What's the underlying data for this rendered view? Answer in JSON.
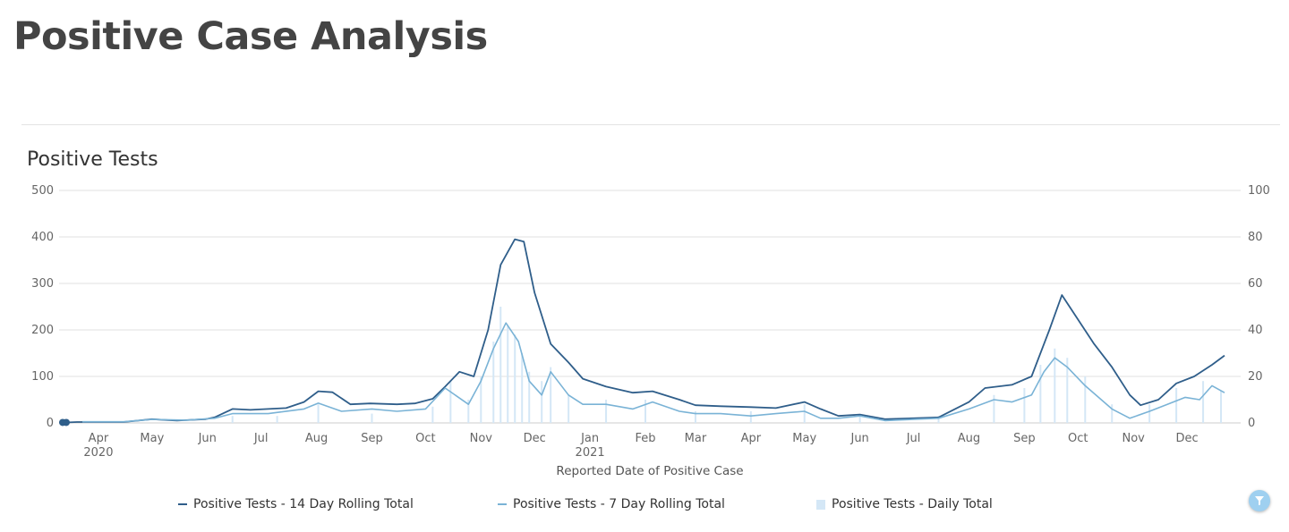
{
  "page": {
    "title": "Positive Case Analysis"
  },
  "chart_title": "Positive Tests",
  "colors": {
    "line14": "#2f5e8a",
    "line7": "#7ab3d6",
    "bars": "#d4e7f6",
    "grid": "#e0e0e0"
  },
  "icons": {
    "filter": "filter-icon"
  },
  "chart_data": {
    "type": "line",
    "title": "Positive Tests",
    "xlabel": "Reported Date of Positive Case",
    "ylabel_left": "",
    "ylabel_right": "",
    "x_range": [
      "2020-03-10",
      "2021-12-31"
    ],
    "ylim_left": [
      0,
      500
    ],
    "ylim_right": [
      0,
      100
    ],
    "yticks_left": [
      "0",
      "100",
      "200",
      "300",
      "400",
      "500"
    ],
    "yticks_right": [
      "0",
      "20",
      "40",
      "60",
      "80",
      "100"
    ],
    "x_ticks": [
      {
        "date": "2020-04-01",
        "label": "Apr",
        "sublabel": "2020"
      },
      {
        "date": "2020-05-01",
        "label": "May",
        "sublabel": ""
      },
      {
        "date": "2020-06-01",
        "label": "Jun",
        "sublabel": ""
      },
      {
        "date": "2020-07-01",
        "label": "Jul",
        "sublabel": ""
      },
      {
        "date": "2020-08-01",
        "label": "Aug",
        "sublabel": ""
      },
      {
        "date": "2020-09-01",
        "label": "Sep",
        "sublabel": ""
      },
      {
        "date": "2020-10-01",
        "label": "Oct",
        "sublabel": ""
      },
      {
        "date": "2020-11-01",
        "label": "Nov",
        "sublabel": ""
      },
      {
        "date": "2020-12-01",
        "label": "Dec",
        "sublabel": ""
      },
      {
        "date": "2021-01-01",
        "label": "Jan",
        "sublabel": "2021"
      },
      {
        "date": "2021-02-01",
        "label": "Feb",
        "sublabel": ""
      },
      {
        "date": "2021-03-01",
        "label": "Mar",
        "sublabel": ""
      },
      {
        "date": "2021-04-01",
        "label": "Apr",
        "sublabel": ""
      },
      {
        "date": "2021-05-01",
        "label": "May",
        "sublabel": ""
      },
      {
        "date": "2021-06-01",
        "label": "Jun",
        "sublabel": ""
      },
      {
        "date": "2021-07-01",
        "label": "Jul",
        "sublabel": ""
      },
      {
        "date": "2021-08-01",
        "label": "Aug",
        "sublabel": ""
      },
      {
        "date": "2021-09-01",
        "label": "Sep",
        "sublabel": ""
      },
      {
        "date": "2021-10-01",
        "label": "Oct",
        "sublabel": ""
      },
      {
        "date": "2021-11-01",
        "label": "Nov",
        "sublabel": ""
      },
      {
        "date": "2021-12-01",
        "label": "Dec",
        "sublabel": ""
      }
    ],
    "grid": true,
    "legend_position": "bottom",
    "series": [
      {
        "name": "Positive Tests - 14 Day Rolling Total",
        "axis": "left",
        "kind": "line",
        "points": [
          [
            "2020-03-12",
            1
          ],
          [
            "2020-03-14",
            1
          ],
          [
            "2020-03-20",
            2
          ],
          [
            "2020-03-23",
            2
          ],
          [
            "2020-04-15",
            2
          ],
          [
            "2020-05-01",
            8
          ],
          [
            "2020-05-10",
            6
          ],
          [
            "2020-05-15",
            5
          ],
          [
            "2020-05-20",
            6
          ],
          [
            "2020-05-31",
            8
          ],
          [
            "2020-06-05",
            12
          ],
          [
            "2020-06-15",
            30
          ],
          [
            "2020-06-25",
            28
          ],
          [
            "2020-07-05",
            30
          ],
          [
            "2020-07-15",
            32
          ],
          [
            "2020-07-25",
            45
          ],
          [
            "2020-08-02",
            68
          ],
          [
            "2020-08-10",
            66
          ],
          [
            "2020-08-20",
            40
          ],
          [
            "2020-08-31",
            42
          ],
          [
            "2020-09-15",
            40
          ],
          [
            "2020-09-25",
            42
          ],
          [
            "2020-10-05",
            52
          ],
          [
            "2020-10-12",
            78
          ],
          [
            "2020-10-20",
            110
          ],
          [
            "2020-10-28",
            100
          ],
          [
            "2020-11-05",
            200
          ],
          [
            "2020-11-12",
            340
          ],
          [
            "2020-11-20",
            395
          ],
          [
            "2020-11-25",
            390
          ],
          [
            "2020-12-01",
            280
          ],
          [
            "2020-12-10",
            170
          ],
          [
            "2020-12-20",
            130
          ],
          [
            "2020-12-28",
            95
          ],
          [
            "2021-01-10",
            78
          ],
          [
            "2021-01-25",
            65
          ],
          [
            "2021-02-05",
            68
          ],
          [
            "2021-02-20",
            50
          ],
          [
            "2021-03-01",
            38
          ],
          [
            "2021-03-15",
            36
          ],
          [
            "2021-04-01",
            34
          ],
          [
            "2021-04-15",
            32
          ],
          [
            "2021-05-01",
            45
          ],
          [
            "2021-05-10",
            30
          ],
          [
            "2021-05-20",
            15
          ],
          [
            "2021-06-01",
            18
          ],
          [
            "2021-06-15",
            8
          ],
          [
            "2021-07-01",
            10
          ],
          [
            "2021-07-15",
            12
          ],
          [
            "2021-08-01",
            45
          ],
          [
            "2021-08-10",
            75
          ],
          [
            "2021-08-25",
            82
          ],
          [
            "2021-09-05",
            100
          ],
          [
            "2021-09-15",
            200
          ],
          [
            "2021-09-22",
            275
          ],
          [
            "2021-09-28",
            240
          ],
          [
            "2021-10-10",
            170
          ],
          [
            "2021-10-20",
            120
          ],
          [
            "2021-10-30",
            60
          ],
          [
            "2021-11-05",
            38
          ],
          [
            "2021-11-15",
            50
          ],
          [
            "2021-11-25",
            85
          ],
          [
            "2021-12-05",
            100
          ],
          [
            "2021-12-15",
            125
          ],
          [
            "2021-12-22",
            145
          ]
        ]
      },
      {
        "name": "Positive Tests - 7 Day Rolling Total",
        "axis": "right",
        "kind": "line",
        "points": [
          [
            "2020-03-23",
            0.5
          ],
          [
            "2020-04-15",
            0.5
          ],
          [
            "2020-05-01",
            1.5
          ],
          [
            "2020-05-20",
            1.2
          ],
          [
            "2020-06-05",
            2
          ],
          [
            "2020-06-15",
            4
          ],
          [
            "2020-07-05",
            4
          ],
          [
            "2020-07-25",
            6
          ],
          [
            "2020-08-02",
            8.5
          ],
          [
            "2020-08-15",
            5
          ],
          [
            "2020-09-01",
            6
          ],
          [
            "2020-09-15",
            5
          ],
          [
            "2020-10-01",
            6
          ],
          [
            "2020-10-12",
            15
          ],
          [
            "2020-10-25",
            8
          ],
          [
            "2020-11-01",
            18
          ],
          [
            "2020-11-08",
            32
          ],
          [
            "2020-11-15",
            43
          ],
          [
            "2020-11-22",
            35
          ],
          [
            "2020-11-28",
            18
          ],
          [
            "2020-12-05",
            12
          ],
          [
            "2020-12-10",
            22
          ],
          [
            "2020-12-20",
            12
          ],
          [
            "2020-12-28",
            8
          ],
          [
            "2021-01-10",
            8
          ],
          [
            "2021-01-25",
            6
          ],
          [
            "2021-02-05",
            9
          ],
          [
            "2021-02-20",
            5
          ],
          [
            "2021-03-01",
            4
          ],
          [
            "2021-03-15",
            4
          ],
          [
            "2021-04-01",
            3
          ],
          [
            "2021-04-15",
            4
          ],
          [
            "2021-05-01",
            5
          ],
          [
            "2021-05-10",
            2
          ],
          [
            "2021-05-20",
            2
          ],
          [
            "2021-06-01",
            3
          ],
          [
            "2021-06-15",
            1
          ],
          [
            "2021-07-15",
            2
          ],
          [
            "2021-08-01",
            6
          ],
          [
            "2021-08-15",
            10
          ],
          [
            "2021-08-25",
            9
          ],
          [
            "2021-09-05",
            12
          ],
          [
            "2021-09-12",
            22
          ],
          [
            "2021-09-18",
            28
          ],
          [
            "2021-09-25",
            24
          ],
          [
            "2021-10-05",
            16
          ],
          [
            "2021-10-20",
            6
          ],
          [
            "2021-10-30",
            2
          ],
          [
            "2021-11-10",
            5
          ],
          [
            "2021-11-20",
            8
          ],
          [
            "2021-11-30",
            11
          ],
          [
            "2021-12-08",
            10
          ],
          [
            "2021-12-15",
            16
          ],
          [
            "2021-12-22",
            13
          ]
        ]
      },
      {
        "name": "Positive Tests - Daily Total",
        "axis": "right",
        "kind": "bar",
        "points": [
          [
            "2020-06-15",
            3
          ],
          [
            "2020-07-10",
            3
          ],
          [
            "2020-08-02",
            8
          ],
          [
            "2020-09-01",
            4
          ],
          [
            "2020-10-05",
            7
          ],
          [
            "2020-10-15",
            18
          ],
          [
            "2020-10-25",
            10
          ],
          [
            "2020-11-01",
            20
          ],
          [
            "2020-11-08",
            35
          ],
          [
            "2020-11-12",
            50
          ],
          [
            "2020-11-16",
            42
          ],
          [
            "2020-11-20",
            38
          ],
          [
            "2020-11-24",
            30
          ],
          [
            "2020-11-28",
            22
          ],
          [
            "2020-12-05",
            18
          ],
          [
            "2020-12-10",
            24
          ],
          [
            "2020-12-20",
            12
          ],
          [
            "2021-01-10",
            10
          ],
          [
            "2021-02-01",
            10
          ],
          [
            "2021-03-01",
            5
          ],
          [
            "2021-04-01",
            5
          ],
          [
            "2021-05-01",
            8
          ],
          [
            "2021-06-01",
            3
          ],
          [
            "2021-07-15",
            3
          ],
          [
            "2021-08-15",
            12
          ],
          [
            "2021-09-01",
            15
          ],
          [
            "2021-09-10",
            25
          ],
          [
            "2021-09-18",
            32
          ],
          [
            "2021-09-25",
            28
          ],
          [
            "2021-10-05",
            20
          ],
          [
            "2021-10-20",
            8
          ],
          [
            "2021-11-10",
            8
          ],
          [
            "2021-11-25",
            15
          ],
          [
            "2021-12-10",
            18
          ],
          [
            "2021-12-20",
            14
          ]
        ]
      }
    ]
  },
  "legend": [
    {
      "label": "Positive Tests - 14 Day Rolling Total",
      "kind": "line",
      "color": "#2f5e8a"
    },
    {
      "label": "Positive Tests - 7 Day Rolling Total",
      "kind": "line",
      "color": "#7ab3d6"
    },
    {
      "label": "Positive Tests - Daily Total",
      "kind": "bar",
      "color": "#d4e7f6"
    }
  ]
}
